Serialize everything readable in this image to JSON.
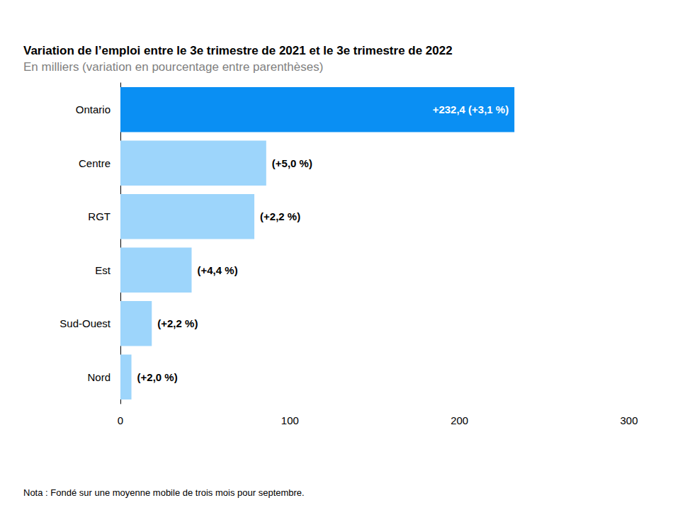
{
  "chart_data": {
    "type": "bar",
    "orientation": "horizontal",
    "title": "Variation de l’emploi entre le 3e trimestre de 2021 et le 3e trimestre de 2022",
    "subtitle": "En milliers (variation en pourcentage entre parenthèses)",
    "note": "Nota : Fondé sur une moyenne mobile de trois mois pour septembre.",
    "categories": [
      "Ontario",
      "Centre",
      "RGT",
      "Est",
      "Sud-Ouest",
      "Nord"
    ],
    "values": [
      232.4,
      86,
      79,
      42,
      18.5,
      6.5
    ],
    "value_labels": [
      "+232,4",
      null,
      null,
      null,
      null,
      null
    ],
    "percent_labels": [
      "(+3,1 %)",
      "(+5,0 %)",
      "(+2,2 %)",
      "(+4,4 %)",
      "(+2,2 %)",
      "(+2,0 %)"
    ],
    "colors": [
      "#0a8ff3",
      "#9dd5fb",
      "#9dd5fb",
      "#9dd5fb",
      "#9dd5fb",
      "#9dd5fb"
    ],
    "xlim": [
      0,
      300
    ],
    "xticks": [
      0,
      100,
      200,
      300
    ],
    "grid": false,
    "data_labels": true
  }
}
